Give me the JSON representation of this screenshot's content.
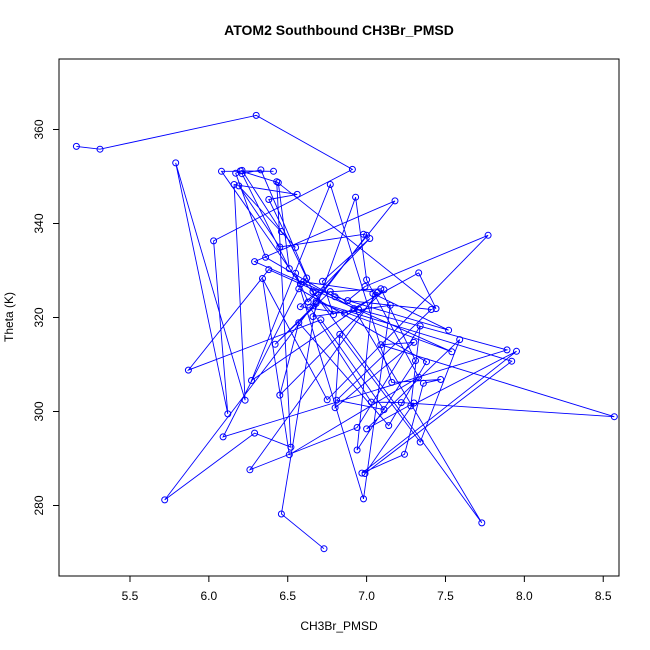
{
  "chart_data": {
    "type": "line",
    "title": "ATOM2 Southbound CH3Br_PMSD",
    "xlabel": "CH3Br_PMSD",
    "ylabel": "Theta (K)",
    "xlim": [
      5.05,
      8.6
    ],
    "ylim": [
      265,
      375
    ],
    "x_ticks": [
      "5.5",
      "6.0",
      "6.5",
      "7.0",
      "7.5",
      "8.0",
      "8.5"
    ],
    "y_ticks": [
      "280",
      "300",
      "320",
      "340",
      "360"
    ],
    "series": [
      {
        "color": "#0000ff",
        "marker": "open-circle",
        "x": [
          5.16,
          5.31,
          6.3,
          6.91,
          6.03,
          6.12,
          5.79,
          6.23,
          6.16,
          6.56,
          6.38,
          6.62,
          6.58,
          6.08,
          6.41,
          6.2,
          6.44,
          6.51,
          6.21,
          6.33,
          6.66,
          7.73,
          6.92,
          6.36,
          6.17,
          6.21,
          6.46,
          6.55,
          6.19,
          6.45,
          6.98,
          7.0,
          5.72,
          6.29,
          6.52,
          6.43,
          7.44,
          7.33,
          6.86,
          6.58,
          6.68,
          7.09,
          7.31,
          6.94,
          7.04,
          7.52,
          6.8,
          6.29,
          7.18,
          6.64,
          7.03,
          7.22,
          8.57,
          7.09,
          7.3,
          6.8,
          6.83,
          7.34,
          7.59,
          7.0,
          7.3,
          6.99,
          7.92,
          6.68,
          7.54,
          6.38,
          5.87,
          6.71,
          7.11,
          6.81,
          7.41,
          6.88,
          6.99,
          7.77,
          6.75,
          6.34,
          6.51,
          7.33,
          7.0,
          6.93,
          6.66,
          7.15,
          6.98,
          6.55,
          6.63,
          7.02,
          6.72,
          6.79,
          6.6,
          7.07,
          6.26,
          6.94,
          7.34,
          7.28,
          7.95,
          6.97,
          7.24,
          7.36,
          7.47,
          7.16,
          6.77,
          6.27,
          7.11,
          6.45,
          6.57,
          7.14,
          7.38,
          6.57,
          6.09,
          7.89,
          6.95,
          6.77,
          6.42,
          6.68,
          6.46,
          6.73
        ],
        "y": [
          356.4,
          355.8,
          363.0,
          351.5,
          336.3,
          299.5,
          352.9,
          302.4,
          348.3,
          346.2,
          345.1,
          328.4,
          327.1,
          351.1,
          351.1,
          351.2,
          348.7,
          330.4,
          350.6,
          351.4,
          325.5,
          276.3,
          321.9,
          332.8,
          350.7,
          351.3,
          338.3,
          334.9,
          348.0,
          335.0,
          337.7,
          337.5,
          281.2,
          295.4,
          292.4,
          348.9,
          321.9,
          329.5,
          320.9,
          322.3,
          325.3,
          326.1,
          310.8,
          291.8,
          325.1,
          317.3,
          324.4,
          331.9,
          344.8,
          322.2,
          302.0,
          301.9,
          298.9,
          314.2,
          314.7,
          300.8,
          316.4,
          293.5,
          315.3,
          296.3,
          301.8,
          286.8,
          310.7,
          323.4,
          312.7,
          330.2,
          308.8,
          319.5,
          300.4,
          302.4,
          321.7,
          323.6,
          326.6,
          337.5,
          302.5,
          328.3,
          290.8,
          307.3,
          328.0,
          345.6,
          320.2,
          322.6,
          281.4,
          329.4,
          323.3,
          336.8,
          327.7,
          320.6,
          327.6,
          325.3,
          287.6,
          296.6,
          318.2,
          301.2,
          312.8,
          286.9,
          290.9,
          306.0,
          306.8,
          306.2,
          348.3,
          306.6,
          325.9,
          303.5,
          318.9,
          297.0,
          310.6,
          326.1,
          294.6,
          313.1,
          321.7,
          325.5,
          314.3,
          323.0,
          278.2,
          270.8
        ]
      }
    ]
  }
}
